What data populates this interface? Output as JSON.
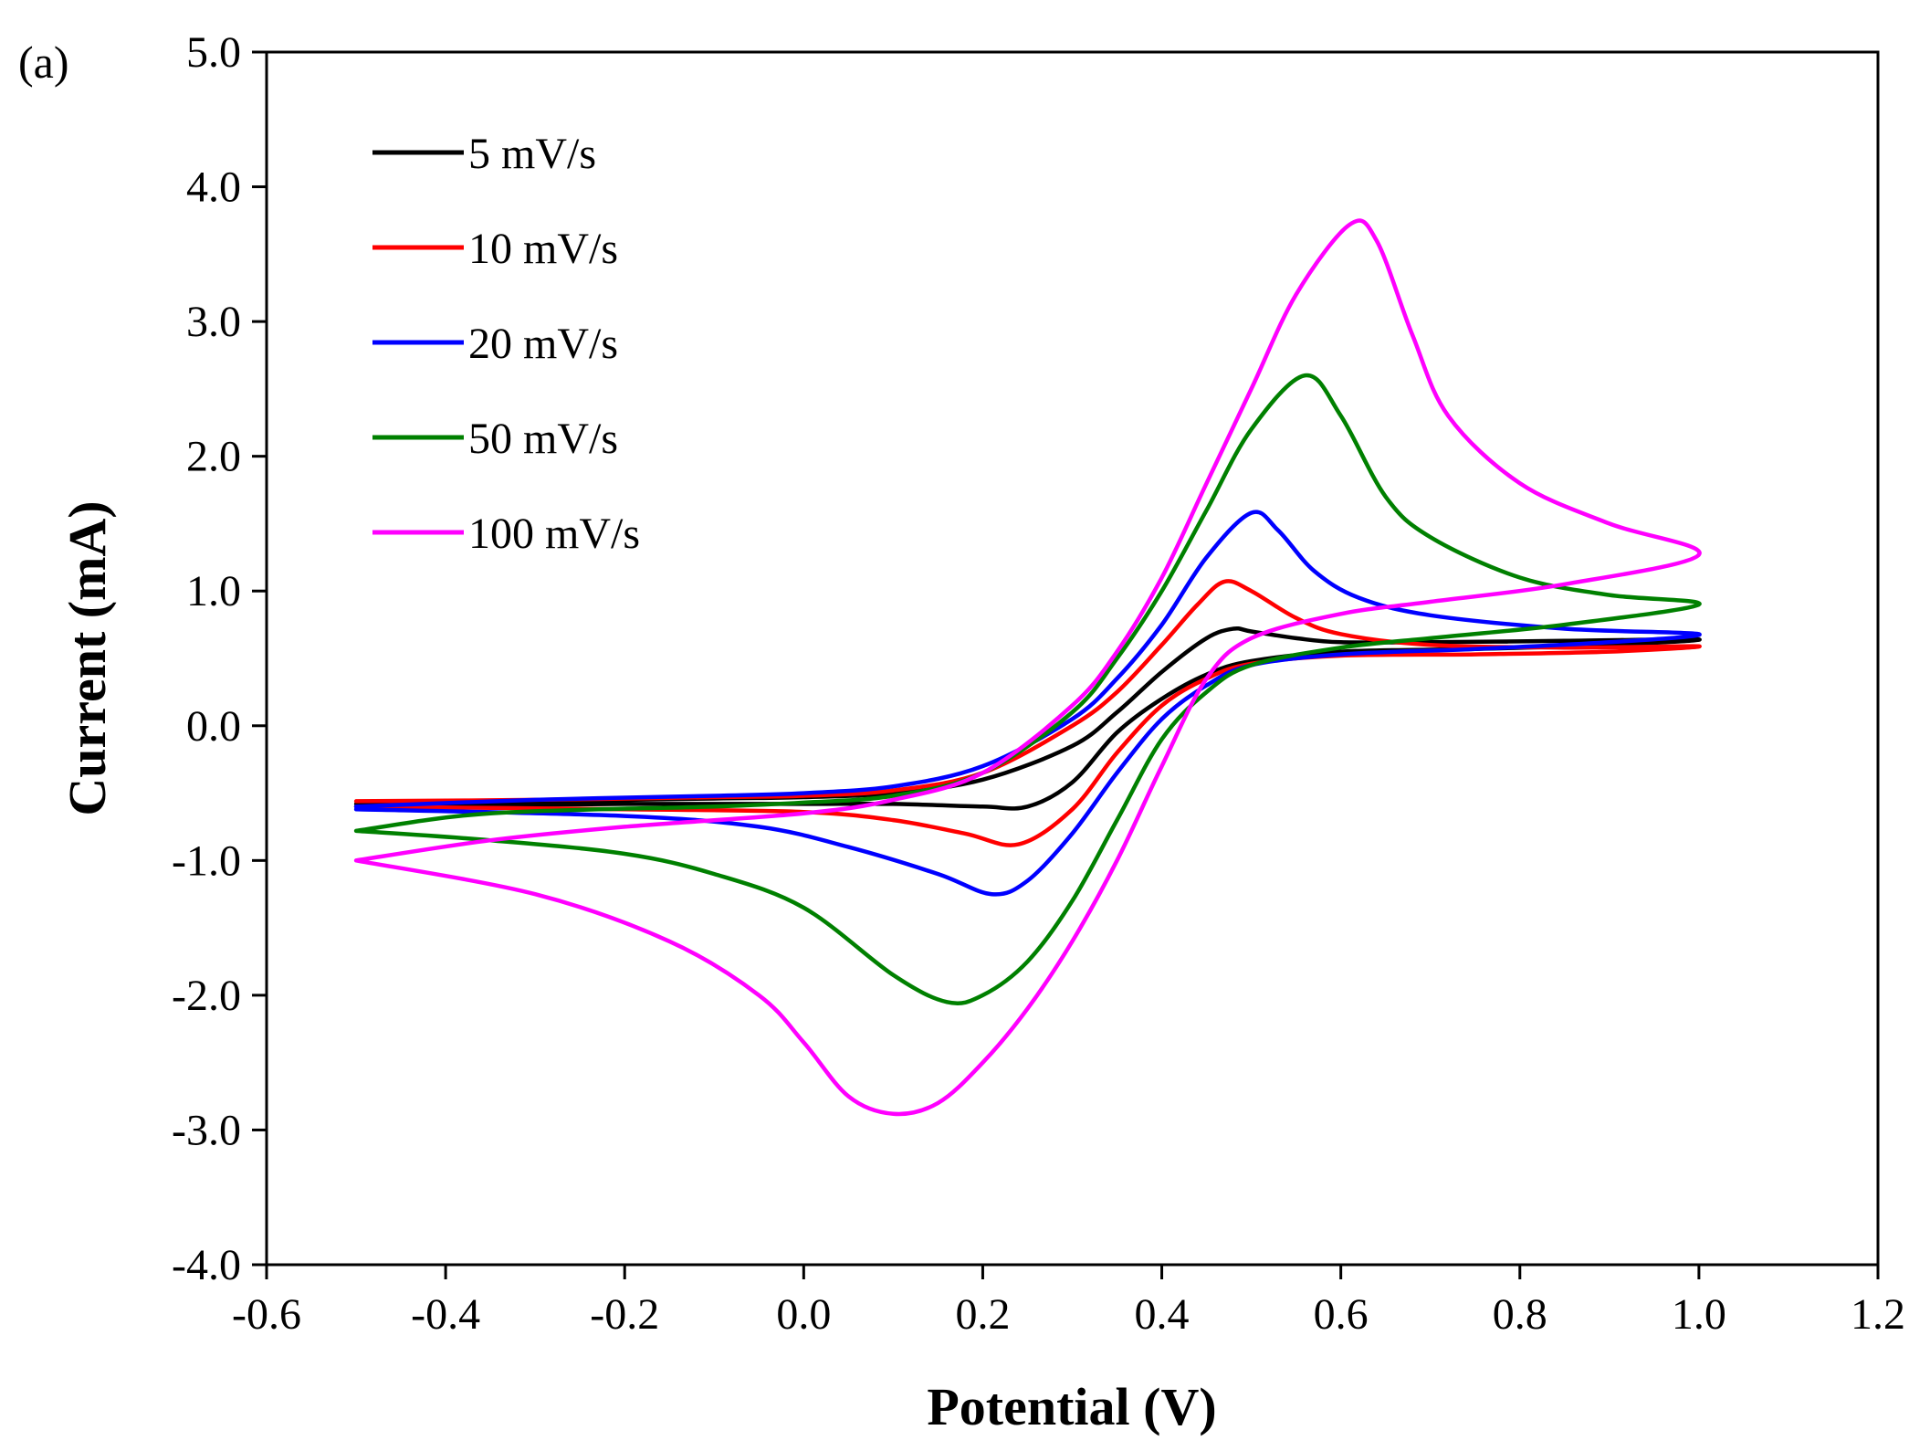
{
  "chart_data": {
    "type": "line",
    "panel_label": "(a)",
    "xlabel": "Potential (V)",
    "ylabel": "Current (mA)",
    "xlim": [
      -0.6,
      1.2
    ],
    "ylim": [
      -4.0,
      5.0
    ],
    "x_ticks": [
      -0.6,
      -0.4,
      -0.2,
      0.0,
      0.2,
      0.4,
      0.6,
      0.8,
      1.0,
      1.2
    ],
    "x_tick_labels": [
      "-0.6",
      "-0.4",
      "-0.2",
      "0.0",
      "0.2",
      "0.4",
      "0.6",
      "0.8",
      "1.0",
      "1.2"
    ],
    "y_ticks": [
      -4.0,
      -3.0,
      -2.0,
      -1.0,
      0.0,
      1.0,
      2.0,
      3.0,
      4.0,
      5.0
    ],
    "y_tick_labels": [
      "-4.0",
      "-3.0",
      "-2.0",
      "-1.0",
      "0.0",
      "1.0",
      "2.0",
      "3.0",
      "4.0",
      "5.0"
    ],
    "grid": false,
    "legend_position": "top-left",
    "series": [
      {
        "name": "5 mV/s",
        "color": "#000000",
        "points": [
          [
            -0.5,
            -0.58
          ],
          [
            -0.3,
            -0.56
          ],
          [
            -0.1,
            -0.54
          ],
          [
            0.0,
            -0.53
          ],
          [
            0.1,
            -0.5
          ],
          [
            0.2,
            -0.4
          ],
          [
            0.3,
            -0.15
          ],
          [
            0.35,
            0.1
          ],
          [
            0.4,
            0.4
          ],
          [
            0.45,
            0.65
          ],
          [
            0.48,
            0.72
          ],
          [
            0.5,
            0.7
          ],
          [
            0.55,
            0.65
          ],
          [
            0.6,
            0.62
          ],
          [
            0.7,
            0.62
          ],
          [
            0.85,
            0.63
          ],
          [
            1.0,
            0.64
          ],
          [
            0.9,
            0.6
          ],
          [
            0.75,
            0.57
          ],
          [
            0.6,
            0.55
          ],
          [
            0.5,
            0.48
          ],
          [
            0.45,
            0.38
          ],
          [
            0.4,
            0.2
          ],
          [
            0.35,
            -0.05
          ],
          [
            0.3,
            -0.42
          ],
          [
            0.25,
            -0.6
          ],
          [
            0.2,
            -0.6
          ],
          [
            0.1,
            -0.58
          ],
          [
            0.0,
            -0.58
          ],
          [
            -0.2,
            -0.58
          ],
          [
            -0.5,
            -0.6
          ]
        ]
      },
      {
        "name": "10 mV/s",
        "color": "#ff0000",
        "points": [
          [
            -0.5,
            -0.56
          ],
          [
            -0.3,
            -0.55
          ],
          [
            -0.1,
            -0.53
          ],
          [
            0.0,
            -0.52
          ],
          [
            0.1,
            -0.48
          ],
          [
            0.2,
            -0.35
          ],
          [
            0.3,
            0.0
          ],
          [
            0.35,
            0.25
          ],
          [
            0.4,
            0.6
          ],
          [
            0.44,
            0.9
          ],
          [
            0.47,
            1.07
          ],
          [
            0.5,
            1.0
          ],
          [
            0.55,
            0.8
          ],
          [
            0.6,
            0.68
          ],
          [
            0.7,
            0.6
          ],
          [
            0.85,
            0.58
          ],
          [
            1.0,
            0.59
          ],
          [
            0.9,
            0.55
          ],
          [
            0.75,
            0.53
          ],
          [
            0.6,
            0.52
          ],
          [
            0.5,
            0.46
          ],
          [
            0.45,
            0.35
          ],
          [
            0.4,
            0.15
          ],
          [
            0.35,
            -0.2
          ],
          [
            0.3,
            -0.62
          ],
          [
            0.24,
            -0.88
          ],
          [
            0.18,
            -0.8
          ],
          [
            0.1,
            -0.7
          ],
          [
            0.0,
            -0.64
          ],
          [
            -0.2,
            -0.62
          ],
          [
            -0.5,
            -0.6
          ]
        ]
      },
      {
        "name": "20 mV/s",
        "color": "#0000ff",
        "points": [
          [
            -0.5,
            -0.6
          ],
          [
            -0.3,
            -0.55
          ],
          [
            -0.1,
            -0.52
          ],
          [
            0.0,
            -0.5
          ],
          [
            0.1,
            -0.45
          ],
          [
            0.2,
            -0.3
          ],
          [
            0.3,
            0.05
          ],
          [
            0.35,
            0.35
          ],
          [
            0.4,
            0.75
          ],
          [
            0.45,
            1.25
          ],
          [
            0.5,
            1.58
          ],
          [
            0.53,
            1.45
          ],
          [
            0.57,
            1.15
          ],
          [
            0.62,
            0.95
          ],
          [
            0.7,
            0.82
          ],
          [
            0.85,
            0.72
          ],
          [
            1.0,
            0.68
          ],
          [
            0.9,
            0.62
          ],
          [
            0.75,
            0.57
          ],
          [
            0.6,
            0.53
          ],
          [
            0.5,
            0.45
          ],
          [
            0.45,
            0.3
          ],
          [
            0.4,
            0.05
          ],
          [
            0.35,
            -0.35
          ],
          [
            0.3,
            -0.8
          ],
          [
            0.25,
            -1.15
          ],
          [
            0.21,
            -1.25
          ],
          [
            0.15,
            -1.1
          ],
          [
            0.05,
            -0.9
          ],
          [
            -0.05,
            -0.75
          ],
          [
            -0.2,
            -0.67
          ],
          [
            -0.5,
            -0.62
          ]
        ]
      },
      {
        "name": "50 mV/s",
        "color": "#008000",
        "points": [
          [
            -0.5,
            -0.78
          ],
          [
            -0.35,
            -0.65
          ],
          [
            -0.1,
            -0.6
          ],
          [
            0.0,
            -0.57
          ],
          [
            0.1,
            -0.52
          ],
          [
            0.2,
            -0.35
          ],
          [
            0.3,
            0.1
          ],
          [
            0.35,
            0.5
          ],
          [
            0.4,
            1.0
          ],
          [
            0.45,
            1.6
          ],
          [
            0.5,
            2.2
          ],
          [
            0.56,
            2.6
          ],
          [
            0.6,
            2.3
          ],
          [
            0.65,
            1.7
          ],
          [
            0.7,
            1.4
          ],
          [
            0.8,
            1.1
          ],
          [
            0.9,
            0.97
          ],
          [
            1.0,
            0.9
          ],
          [
            0.85,
            0.75
          ],
          [
            0.7,
            0.65
          ],
          [
            0.6,
            0.58
          ],
          [
            0.5,
            0.45
          ],
          [
            0.45,
            0.25
          ],
          [
            0.4,
            -0.1
          ],
          [
            0.35,
            -0.7
          ],
          [
            0.3,
            -1.3
          ],
          [
            0.25,
            -1.75
          ],
          [
            0.2,
            -2.0
          ],
          [
            0.16,
            -2.05
          ],
          [
            0.1,
            -1.85
          ],
          [
            0.0,
            -1.35
          ],
          [
            -0.1,
            -1.1
          ],
          [
            -0.2,
            -0.95
          ],
          [
            -0.35,
            -0.85
          ],
          [
            -0.5,
            -0.78
          ]
        ]
      },
      {
        "name": "100 mV/s",
        "color": "#ff00ff",
        "points": [
          [
            -0.5,
            -1.0
          ],
          [
            -0.35,
            -0.85
          ],
          [
            -0.2,
            -0.75
          ],
          [
            0.0,
            -0.65
          ],
          [
            0.1,
            -0.55
          ],
          [
            0.2,
            -0.35
          ],
          [
            0.3,
            0.15
          ],
          [
            0.35,
            0.55
          ],
          [
            0.4,
            1.1
          ],
          [
            0.45,
            1.8
          ],
          [
            0.5,
            2.5
          ],
          [
            0.55,
            3.2
          ],
          [
            0.61,
            3.72
          ],
          [
            0.64,
            3.6
          ],
          [
            0.68,
            2.9
          ],
          [
            0.72,
            2.3
          ],
          [
            0.8,
            1.8
          ],
          [
            0.9,
            1.5
          ],
          [
            1.0,
            1.27
          ],
          [
            0.85,
            1.05
          ],
          [
            0.7,
            0.92
          ],
          [
            0.6,
            0.83
          ],
          [
            0.5,
            0.65
          ],
          [
            0.45,
            0.35
          ],
          [
            0.4,
            -0.3
          ],
          [
            0.35,
            -1.0
          ],
          [
            0.3,
            -1.6
          ],
          [
            0.25,
            -2.1
          ],
          [
            0.2,
            -2.5
          ],
          [
            0.15,
            -2.8
          ],
          [
            0.1,
            -2.88
          ],
          [
            0.05,
            -2.75
          ],
          [
            0.0,
            -2.35
          ],
          [
            -0.05,
            -2.0
          ],
          [
            -0.15,
            -1.6
          ],
          [
            -0.3,
            -1.25
          ],
          [
            -0.5,
            -1.0
          ]
        ]
      }
    ]
  }
}
